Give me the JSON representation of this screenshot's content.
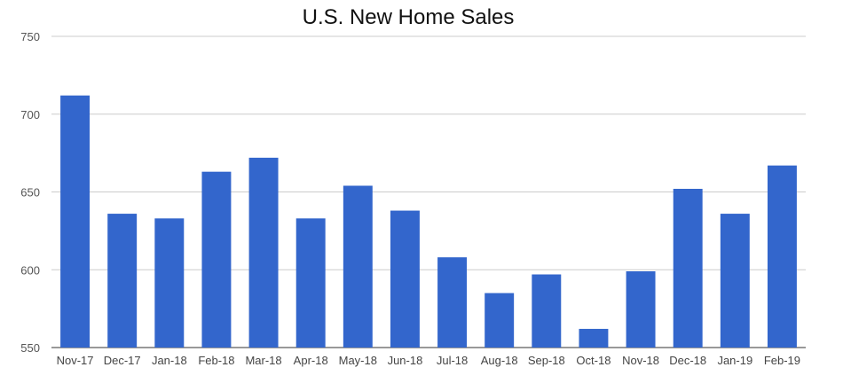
{
  "chart_data": {
    "type": "bar",
    "title": "U.S. New Home Sales",
    "xlabel": "",
    "ylabel": "",
    "ylim": [
      550,
      750
    ],
    "yticks": [
      550,
      600,
      650,
      700,
      750
    ],
    "grid": true,
    "legend": "none",
    "bar_color": "#3366cc",
    "categories": [
      "Nov-17",
      "Dec-17",
      "Jan-18",
      "Feb-18",
      "Mar-18",
      "Apr-18",
      "May-18",
      "Jun-18",
      "Jul-18",
      "Aug-18",
      "Sep-18",
      "Oct-18",
      "Nov-18",
      "Dec-18",
      "Jan-19",
      "Feb-19"
    ],
    "values": [
      712,
      636,
      633,
      663,
      672,
      633,
      654,
      638,
      608,
      585,
      597,
      562,
      599,
      652,
      636,
      667
    ]
  }
}
